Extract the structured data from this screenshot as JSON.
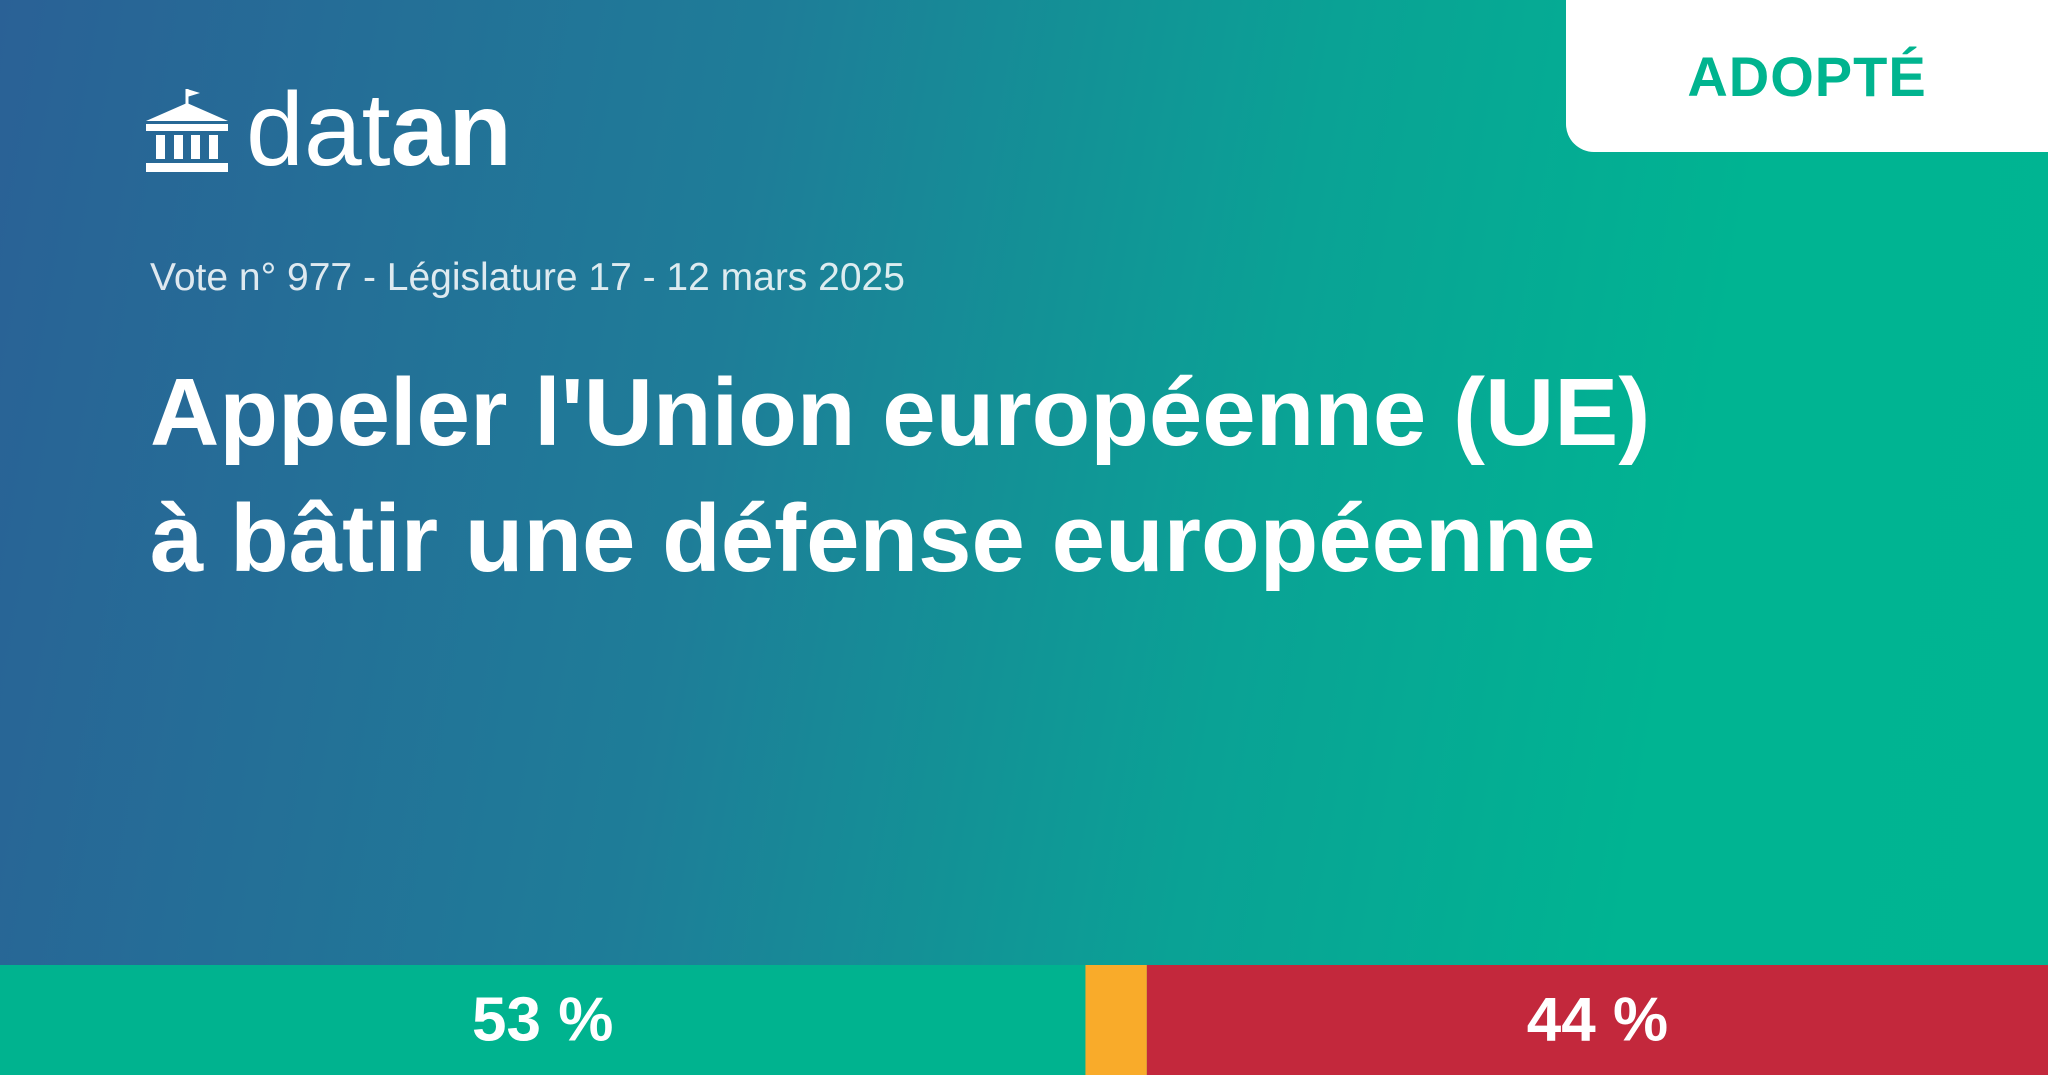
{
  "badge": "ADOPTÉ",
  "logo": {
    "text_light": "dat",
    "text_bold": "an"
  },
  "subtitle": "Vote n° 977 - Législature 17 - 12 mars 2025",
  "title": "Appeler l'Union européenne (UE) à bâtir une défense européenne",
  "vote_bar": {
    "segments": [
      {
        "value": 53,
        "label": "53 %",
        "color": "#00b38f"
      },
      {
        "value": 3,
        "color": "#f9ab2a"
      },
      {
        "value": 44,
        "label": "44 %",
        "color": "#c3283c"
      }
    ]
  }
}
